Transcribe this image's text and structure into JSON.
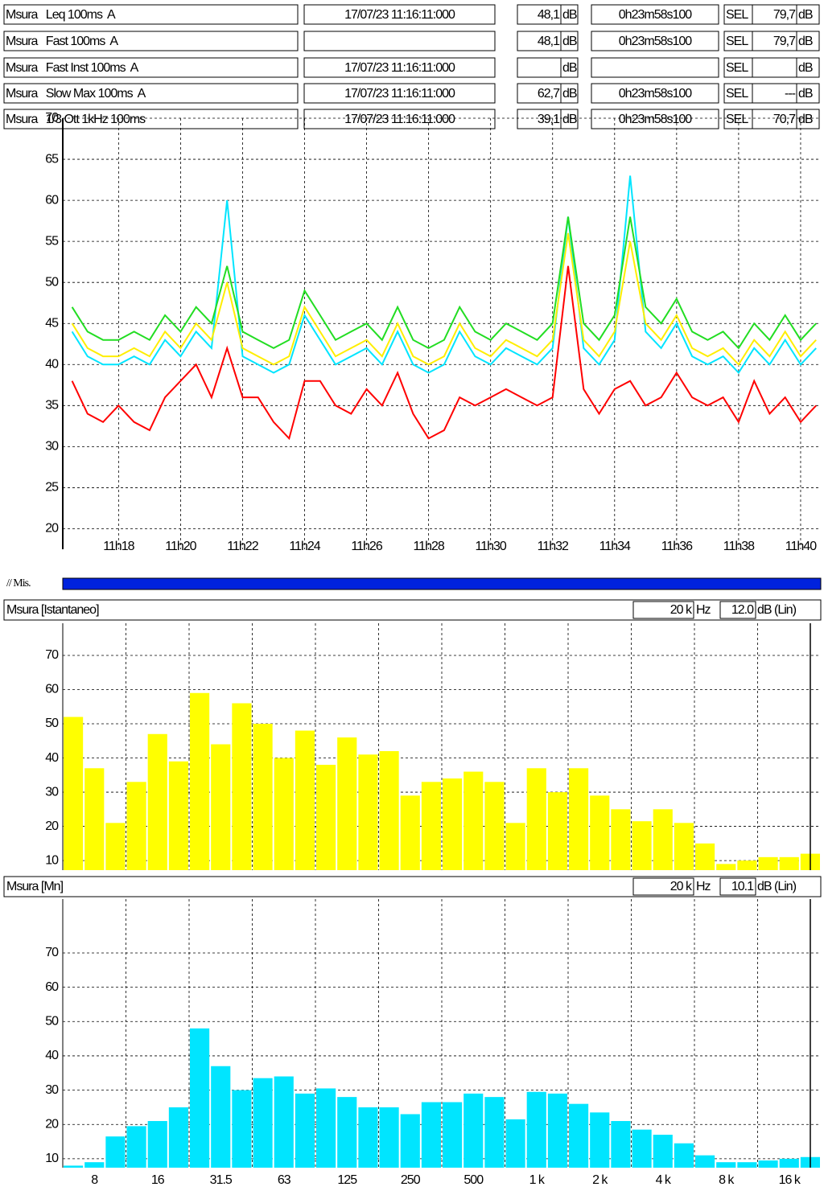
{
  "header_table": {
    "rows": [
      {
        "label": "Msura   Leq 100ms  A",
        "date": "17/07/23 11:16:11:000",
        "date_color": "#22dd22",
        "value": "48,1",
        "value_color": "#00e5ff",
        "unit": "dB",
        "time": "0h23m58s100",
        "time_color": "#00e5ff",
        "sel_label": "SEL",
        "sel": "79,7",
        "sel_color": "#00e5ff",
        "sel_unit": "dB"
      },
      {
        "label": "Msura   Fast 100ms  A",
        "value": "48,1",
        "value_color": "#ffee00",
        "unit": "dB",
        "time": "0h23m58s100",
        "time_color": "#ffee00",
        "sel_label": "SEL",
        "sel": "79,7",
        "sel_color": "#ffee00",
        "sel_unit": "dB"
      },
      {
        "label": "Msura   Fast Inst 100ms  A",
        "date": "17/07/23 11:16:11:000",
        "date_color": "#ff0000",
        "unit": "dB",
        "sel_label": "SEL",
        "sel_unit": "dB"
      },
      {
        "label": "Msura   Slow Max 100ms  A",
        "date": "17/07/23 11:16:11:000",
        "date_color": "#ffee00",
        "value": "62,7",
        "value_color": "#22dd22",
        "unit": "dB",
        "time": "0h23m58s100",
        "time_color": "#22dd22",
        "sel_label": "SEL",
        "sel": "---",
        "sel_color": "#22dd22",
        "sel_unit": "dB"
      },
      {
        "label": "Msura   1/3 Ott 1kHz 100ms",
        "date": "17/07/23 11:16:11:000",
        "date_color": "#ff00ff",
        "value": "39,1",
        "value_color": "#ff0000",
        "unit": "dB",
        "time": "0h23m58s100",
        "time_color": "#ff0000",
        "sel_label": "SEL",
        "sel": "70,7",
        "sel_color": "#ff0000",
        "sel_unit": "dB"
      }
    ]
  },
  "progress": {
    "label": "// Mis."
  },
  "chart_data": [
    {
      "type": "line",
      "x": [
        16.5,
        17,
        17.5,
        18,
        18.5,
        19,
        19.5,
        20,
        20.5,
        21,
        21.5,
        22,
        22.5,
        23,
        23.5,
        24,
        24.5,
        25,
        25.5,
        26,
        26.5,
        27,
        27.5,
        28,
        28.5,
        29,
        29.5,
        30,
        30.5,
        31,
        31.5,
        32,
        32.5,
        33,
        33.5,
        34,
        34.5,
        35,
        35.5,
        36,
        36.5,
        37,
        37.5,
        38,
        38.5,
        39,
        39.5,
        40,
        40.5
      ],
      "xlim": [
        16.2,
        40.65
      ],
      "xticks": [
        {
          "value": 18,
          "label": "11h18"
        },
        {
          "value": 20,
          "label": "11h20"
        },
        {
          "value": 22,
          "label": "11h22"
        },
        {
          "value": 24,
          "label": "11h24"
        },
        {
          "value": 26,
          "label": "11h26"
        },
        {
          "value": 28,
          "label": "11h28"
        },
        {
          "value": 30,
          "label": "11h30"
        },
        {
          "value": 32,
          "label": "11h32"
        },
        {
          "value": 34,
          "label": "11h34"
        },
        {
          "value": 36,
          "label": "11h36"
        },
        {
          "value": 38,
          "label": "11h38"
        },
        {
          "value": 40,
          "label": "11h40"
        }
      ],
      "ylim": [
        17.5,
        70
      ],
      "yticks": [
        20,
        25,
        30,
        35,
        40,
        45,
        50,
        55,
        60,
        65,
        70
      ],
      "grid": true,
      "series": [
        {
          "color": "#00e5ff",
          "values": [
            44,
            41,
            40,
            40,
            41,
            40,
            43,
            41,
            44,
            42,
            60,
            41,
            40,
            39,
            40,
            46,
            43,
            40,
            41,
            42,
            40,
            44,
            40,
            39,
            40,
            44,
            41,
            40,
            42,
            41,
            40,
            42,
            58,
            42,
            40,
            43,
            63,
            44,
            42,
            45,
            41,
            40,
            41,
            39,
            42,
            40,
            43,
            40,
            42
          ]
        },
        {
          "color": "#ffee00",
          "values": [
            45,
            42,
            41,
            41,
            42,
            41,
            44,
            42,
            45,
            43,
            50,
            42,
            41,
            40,
            41,
            47,
            44,
            41,
            42,
            43,
            41,
            45,
            41,
            40,
            41,
            45,
            42,
            41,
            43,
            42,
            41,
            43,
            56,
            43,
            41,
            44,
            55,
            45,
            43,
            46,
            42,
            41,
            42,
            40,
            43,
            41,
            44,
            41,
            43
          ]
        },
        {
          "color": "#22dd22",
          "values": [
            47,
            44,
            43,
            43,
            44,
            43,
            46,
            44,
            47,
            45,
            52,
            44,
            43,
            42,
            43,
            49,
            46,
            43,
            44,
            45,
            43,
            47,
            43,
            42,
            43,
            47,
            44,
            43,
            45,
            44,
            43,
            45,
            58,
            45,
            43,
            46,
            58,
            47,
            45,
            48,
            44,
            43,
            44,
            42,
            45,
            43,
            46,
            43,
            45
          ]
        },
        {
          "color": "#ff0000",
          "values": [
            38,
            34,
            33,
            35,
            33,
            32,
            36,
            38,
            40,
            36,
            42,
            36,
            36,
            33,
            31,
            38,
            38,
            35,
            34,
            37,
            35,
            39,
            34,
            31,
            32,
            36,
            35,
            36,
            37,
            36,
            35,
            36,
            52,
            37,
            34,
            37,
            38,
            35,
            36,
            39,
            36,
            35,
            36,
            33,
            38,
            34,
            36,
            33,
            35
          ]
        }
      ]
    },
    {
      "type": "bar",
      "title": "Msura [Istantaneo]",
      "freq": "20 k",
      "freq_unit": "Hz",
      "level": "12.0",
      "level_unit": "dB (Lin)",
      "color": "#ffff00",
      "categories": [
        null,
        "8",
        null,
        null,
        "16",
        null,
        null,
        "31.5",
        null,
        null,
        "63",
        null,
        null,
        "125",
        null,
        null,
        "250",
        null,
        null,
        "500",
        null,
        null,
        "1 k",
        null,
        null,
        "2 k",
        null,
        null,
        "4 k",
        null,
        null,
        "8 k",
        null,
        null,
        "16 k",
        null
      ],
      "values": [
        52,
        37,
        21,
        33,
        47,
        39,
        59,
        44,
        56,
        50,
        40,
        48,
        38,
        46,
        41,
        42,
        29,
        33,
        34,
        36,
        33,
        21,
        37,
        30,
        37,
        29,
        25,
        21.5,
        25,
        21,
        15,
        9,
        10,
        11,
        11,
        12
      ],
      "ylim": [
        7.2,
        79.4
      ],
      "yticks": [
        10,
        20,
        30,
        40,
        50,
        60,
        70
      ],
      "grid": true
    },
    {
      "type": "bar",
      "title": "Msura [Mn]",
      "freq": "20 k",
      "freq_unit": "Hz",
      "level": "10.1",
      "level_unit": "dB (Lin)",
      "color": "#00e5ff",
      "categories": [
        null,
        "8",
        null,
        null,
        "16",
        null,
        null,
        "31.5",
        null,
        null,
        "63",
        null,
        null,
        "125",
        null,
        null,
        "250",
        null,
        null,
        "500",
        null,
        null,
        "1 k",
        null,
        null,
        "2 k",
        null,
        null,
        "4 k",
        null,
        null,
        "8 k",
        null,
        null,
        "16 k",
        null
      ],
      "values": [
        8,
        9,
        16.5,
        19.5,
        21,
        25,
        48,
        37,
        30,
        33.5,
        34,
        29,
        30.5,
        28,
        25,
        25,
        23,
        26.5,
        26.5,
        29,
        28,
        21.5,
        29.5,
        29,
        26,
        23.5,
        21,
        18.5,
        17,
        14.5,
        11,
        9,
        9,
        9.5,
        10,
        10.5
      ],
      "ylim": [
        7.4,
        85.7
      ],
      "yticks": [
        10,
        20,
        30,
        40,
        50,
        60,
        70
      ],
      "grid": true
    }
  ]
}
